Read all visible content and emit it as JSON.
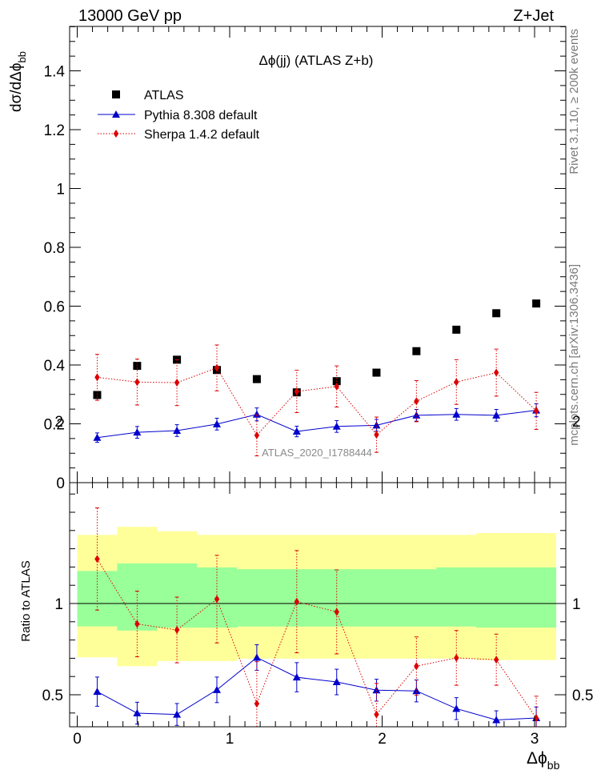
{
  "header": {
    "left_label": "13000 GeV pp",
    "right_label": "Z+Jet"
  },
  "side_labels": {
    "rivet": "Rivet 3.1.10, ≥ 200k events",
    "mcplots": "mcplots.cern.ch [arXiv:1306.3436]"
  },
  "chart_data": [
    {
      "type": "scatter",
      "title": "Δϕ(jj) (ATLAS Z+b)",
      "ylabel": "dσ/dΔϕbb",
      "xlim": [
        -0.07,
        3.22
      ],
      "ylim": [
        0,
        1.56
      ],
      "x_ticks": [
        0,
        1,
        2,
        3
      ],
      "y_ticks": [
        0,
        0.2,
        0.4,
        0.6,
        0.8,
        1,
        1.2,
        1.4
      ],
      "y_tick_labels": [
        "0",
        "0.2",
        "0.4",
        "0.6",
        "0.8",
        "1",
        "1.2",
        "1.4"
      ],
      "watermark": "ATLAS_2020_I1788444",
      "legend_position": "top-left",
      "x": [
        0.131,
        0.393,
        0.654,
        0.916,
        1.178,
        1.44,
        1.702,
        1.963,
        2.225,
        2.487,
        2.749,
        3.011
      ],
      "series": [
        {
          "name": "ATLAS",
          "style": "marker-square",
          "color": "#000000",
          "values": [
            0.298,
            0.397,
            0.418,
            0.383,
            0.352,
            0.307,
            0.345,
            0.374,
            0.447,
            0.52,
            0.576,
            0.609
          ],
          "errors": [
            0.01,
            0.01,
            0.01,
            0.01,
            0.01,
            0.01,
            0.01,
            0.01,
            0.01,
            0.01,
            0.01,
            0.01
          ]
        },
        {
          "name": "Pythia 8.308 default",
          "style": "solid-triangle",
          "color": "#0000cc",
          "values": [
            0.153,
            0.171,
            0.177,
            0.199,
            0.232,
            0.174,
            0.191,
            0.195,
            0.229,
            0.232,
            0.229,
            0.246
          ],
          "errors": [
            0.016,
            0.02,
            0.02,
            0.02,
            0.022,
            0.018,
            0.02,
            0.02,
            0.02,
            0.02,
            0.02,
            0.022
          ]
        },
        {
          "name": "Sherpa 1.4.2 default",
          "style": "dotted-diamond",
          "color": "#dd0000",
          "values": [
            0.358,
            0.342,
            0.34,
            0.39,
            0.161,
            0.31,
            0.327,
            0.163,
            0.277,
            0.342,
            0.374,
            0.244
          ],
          "errors": [
            0.078,
            0.078,
            0.078,
            0.078,
            0.07,
            0.072,
            0.07,
            0.06,
            0.07,
            0.076,
            0.08,
            0.063
          ]
        }
      ]
    },
    {
      "type": "line",
      "ylabel": "Ratio to ATLAS",
      "xlabel": "Δϕbb",
      "xlim": [
        -0.07,
        3.22
      ],
      "ylim": [
        0.35,
        2.3
      ],
      "x_ticks": [
        0,
        1,
        2,
        3
      ],
      "x_tick_labels": [
        "0",
        "1",
        "2",
        "3"
      ],
      "y_ticks": [
        0.5,
        1,
        2
      ],
      "y_tick_labels": [
        "0.5",
        "1",
        "2"
      ],
      "reference_line": 1,
      "bins": [
        0,
        0.262,
        0.524,
        0.785,
        1.047,
        1.309,
        1.571,
        1.833,
        2.094,
        2.356,
        2.618,
        2.88,
        3.142
      ],
      "band_green": {
        "lower": [
          0.875,
          0.852,
          0.868,
          0.868,
          0.874,
          0.874,
          0.874,
          0.874,
          0.874,
          0.874,
          0.868,
          0.868
        ],
        "upper": [
          1.178,
          1.22,
          1.22,
          1.198,
          1.188,
          1.188,
          1.188,
          1.188,
          1.188,
          1.198,
          1.198,
          1.198
        ]
      },
      "band_yellow": {
        "lower": [
          0.705,
          0.656,
          0.685,
          0.685,
          0.698,
          0.698,
          0.698,
          0.698,
          0.698,
          0.698,
          0.69,
          0.69
        ],
        "upper": [
          1.376,
          1.42,
          1.396,
          1.376,
          1.376,
          1.376,
          1.376,
          1.376,
          1.376,
          1.376,
          1.386,
          1.386
        ]
      },
      "x": [
        0.131,
        0.393,
        0.654,
        0.916,
        1.178,
        1.44,
        1.702,
        1.963,
        2.225,
        2.487,
        2.749,
        3.011
      ],
      "series": [
        {
          "name": "Pythia 8.308 default",
          "color": "#0000cc",
          "values": [
            0.517,
            0.399,
            0.392,
            0.527,
            0.704,
            0.596,
            0.57,
            0.525,
            0.521,
            0.424,
            0.362,
            0.373
          ],
          "errors": [
            0.08,
            0.06,
            0.06,
            0.07,
            0.07,
            0.08,
            0.07,
            0.06,
            0.06,
            0.06,
            0.05,
            0.06
          ]
        },
        {
          "name": "Sherpa 1.4.2 default",
          "color": "#dd0000",
          "values": [
            1.244,
            0.888,
            0.855,
            1.024,
            0.451,
            1.01,
            0.954,
            0.392,
            0.657,
            0.702,
            0.692,
            0.372
          ],
          "errors": [
            0.28,
            0.18,
            0.18,
            0.24,
            0.23,
            0.28,
            0.23,
            0.17,
            0.16,
            0.15,
            0.14,
            0.12
          ]
        }
      ]
    }
  ]
}
